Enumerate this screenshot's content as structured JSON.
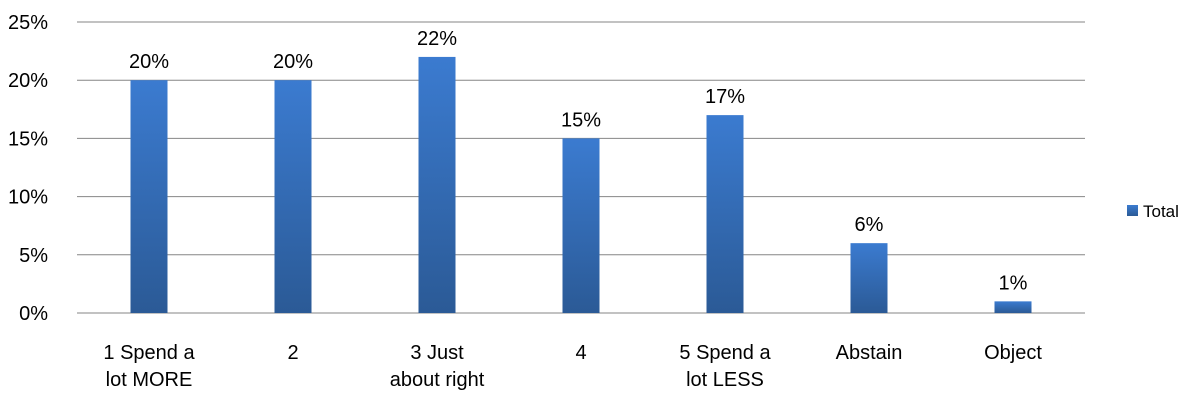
{
  "chart_data": {
    "type": "bar",
    "categories": [
      [
        "1   Spend a",
        "lot MORE"
      ],
      [
        "2"
      ],
      [
        "3   Just",
        "about right"
      ],
      [
        "4"
      ],
      [
        "5   Spend a",
        "lot LESS"
      ],
      [
        "Abstain"
      ],
      [
        "Object"
      ]
    ],
    "series": [
      {
        "name": "Total",
        "values": [
          20,
          20,
          22,
          15,
          17,
          6,
          1
        ]
      }
    ],
    "data_labels": [
      "20%",
      "20%",
      "22%",
      "15%",
      "17%",
      "6%",
      "1%"
    ],
    "y_ticks": [
      "0%",
      "5%",
      "10%",
      "15%",
      "20%",
      "25%"
    ],
    "ylim": [
      0,
      25
    ],
    "grid": true,
    "legend_position": "right",
    "colors": {
      "bar": "#3a75c4",
      "bar_dark": "#2d5e9e",
      "grid": "#868686"
    }
  }
}
